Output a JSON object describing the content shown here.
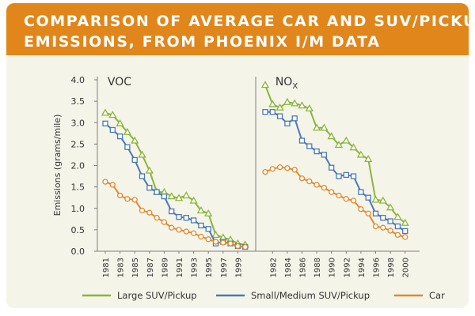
{
  "title_lines": [
    "COMPARISON OF AVERAGE CAR AND SUV/PICKUP",
    "EMISSIONS, FROM PHOENIX I/M DATA"
  ],
  "colors": {
    "banner": "#e0861b",
    "card": "#f5f4e9",
    "large_suv": "#8ab53a",
    "small_suv": "#4a79b3",
    "car": "#e08a2c"
  },
  "chart_data": {
    "type": "line",
    "title": "COMPARISON OF AVERAGE CAR AND SUV/PICKUP EMISSIONS, FROM PHOENIX I/M DATA",
    "ylabel": "Emissions (grams/mile)",
    "ylim": [
      0,
      4.0
    ],
    "yticks": [
      "0.0",
      "0.5",
      "1.0",
      "1.5",
      "2.0",
      "2.5",
      "3.0",
      "3.5",
      "4.0"
    ],
    "grid": false,
    "legend": "bottom",
    "panels": [
      {
        "label": "VOC",
        "x": [
          1981,
          1982,
          1983,
          1984,
          1985,
          1986,
          1987,
          1988,
          1989,
          1990,
          1991,
          1992,
          1993,
          1994,
          1995,
          1996,
          1997,
          1998,
          1999,
          2000
        ],
        "xticks": [
          "1981",
          "1983",
          "1985",
          "1987",
          "1989",
          "1991",
          "1993",
          "1995",
          "1997",
          "1999"
        ],
        "series": [
          {
            "name": "Large SUV/Pickup",
            "marker": "triangle",
            "values": [
              3.23,
              3.18,
              2.98,
              2.78,
              2.58,
              2.25,
              1.88,
              1.38,
              1.38,
              1.28,
              1.24,
              1.3,
              1.18,
              0.95,
              0.88,
              0.38,
              0.32,
              0.27,
              0.18,
              0.15
            ]
          },
          {
            "name": "Small/Medium SUV/Pickup",
            "marker": "square",
            "values": [
              2.98,
              2.83,
              2.68,
              2.43,
              2.13,
              1.75,
              1.48,
              1.38,
              1.28,
              0.93,
              0.8,
              0.78,
              0.72,
              0.6,
              0.52,
              0.18,
              0.22,
              0.18,
              0.12,
              0.1
            ]
          },
          {
            "name": "Car",
            "marker": "circle",
            "values": [
              1.62,
              1.55,
              1.3,
              1.22,
              1.2,
              0.95,
              0.9,
              0.78,
              0.68,
              0.55,
              0.5,
              0.46,
              0.42,
              0.34,
              0.28,
              0.22,
              0.2,
              0.18,
              0.12,
              0.1
            ]
          }
        ]
      },
      {
        "label": "NO",
        "label_sub": "X",
        "x": [
          1981,
          1982,
          1983,
          1984,
          1985,
          1986,
          1987,
          1988,
          1989,
          1990,
          1991,
          1992,
          1993,
          1994,
          1995,
          1996,
          1997,
          1998,
          1999,
          2000
        ],
        "xticks": [
          "1982",
          "1984",
          "1986",
          "1988",
          "1990",
          "1992",
          "1994",
          "1996",
          "1998",
          "2000"
        ],
        "series": [
          {
            "name": "Large SUV/Pickup",
            "marker": "triangle",
            "values": [
              3.88,
              3.43,
              3.35,
              3.48,
              3.45,
              3.4,
              3.33,
              2.88,
              2.88,
              2.68,
              2.48,
              2.58,
              2.42,
              2.25,
              2.15,
              1.2,
              1.18,
              1.02,
              0.8,
              0.66
            ]
          },
          {
            "name": "Small/Medium SUV/Pickup",
            "marker": "square",
            "values": [
              3.25,
              3.25,
              3.15,
              2.98,
              3.1,
              2.58,
              2.45,
              2.33,
              2.25,
              1.95,
              1.75,
              1.78,
              1.75,
              1.38,
              1.25,
              0.88,
              0.78,
              0.7,
              0.58,
              0.47
            ]
          },
          {
            "name": "Car",
            "marker": "circle",
            "values": [
              1.85,
              1.92,
              1.96,
              1.94,
              1.9,
              1.7,
              1.63,
              1.55,
              1.48,
              1.38,
              1.3,
              1.22,
              1.18,
              0.98,
              0.88,
              0.58,
              0.55,
              0.48,
              0.38,
              0.33
            ]
          }
        ]
      }
    ]
  }
}
